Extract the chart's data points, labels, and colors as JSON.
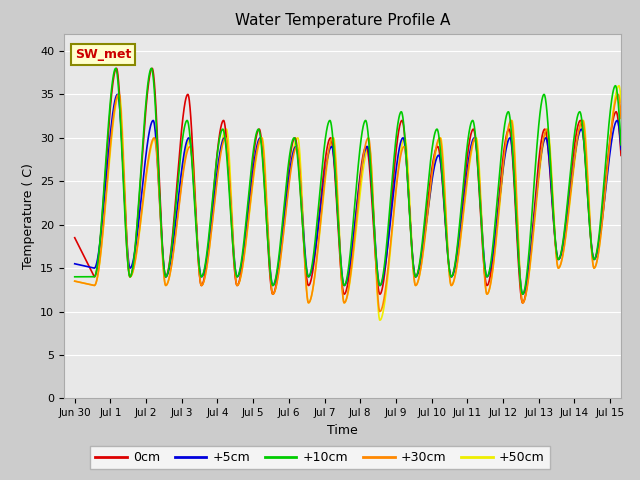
{
  "title": "Water Temperature Profile A",
  "xlabel": "Time",
  "ylabel": "Temperature ( C)",
  "ylim": [
    0,
    42
  ],
  "yticks": [
    0,
    5,
    10,
    15,
    20,
    25,
    30,
    35,
    40
  ],
  "xtick_labels": [
    "Jun 30",
    "Jul 1",
    "Jul 2",
    "Jul 3",
    "Jul 4",
    "Jul 5",
    "Jul 6",
    "Jul 7",
    "Jul 8",
    "Jul 9",
    "Jul 10",
    "Jul 11",
    "Jul 12",
    "Jul 13",
    "Jul 14",
    "Jul 15"
  ],
  "annotation_text": "SW_met",
  "annotation_bg": "#ffffcc",
  "annotation_border": "#888800",
  "annotation_text_color": "#cc0000",
  "colors": {
    "0cm": "#dd0000",
    "+5cm": "#0000dd",
    "+10cm": "#00cc00",
    "+30cm": "#ff8800",
    "+50cm": "#eeee00"
  },
  "legend_labels": [
    "0cm",
    "+5cm",
    "+10cm",
    "+30cm",
    "+50cm"
  ],
  "plot_bg": "#e8e8e8",
  "outer_bg": "#cccccc",
  "grid_color": "#ffffff",
  "line_width": 1.2,
  "day_peaks_0cm": [
    38,
    38,
    35,
    32,
    31,
    30,
    30,
    29,
    32,
    29,
    31,
    31,
    31,
    32,
    33,
    33
  ],
  "day_peaks_5cm": [
    35,
    32,
    30,
    30,
    30,
    29,
    29,
    29,
    30,
    28,
    30,
    30,
    30,
    31,
    32,
    32
  ],
  "day_peaks_10cm": [
    38,
    38,
    32,
    31,
    31,
    30,
    32,
    32,
    33,
    31,
    32,
    33,
    35,
    33,
    36,
    33
  ],
  "day_peaks_30cm": [
    35,
    30,
    29,
    30,
    30,
    29,
    30,
    30,
    29,
    30,
    30,
    32,
    31,
    32,
    35,
    32
  ],
  "day_peaks_50cm": [
    35,
    30,
    30,
    31,
    30,
    30,
    30,
    29,
    30,
    30,
    30,
    32,
    31,
    32,
    36,
    32
  ],
  "day_mins_0cm": [
    14,
    14,
    14,
    13,
    13,
    12,
    13,
    12,
    12,
    14,
    14,
    13,
    11,
    16,
    16,
    16
  ],
  "day_mins_5cm": [
    15,
    15,
    14,
    14,
    14,
    13,
    14,
    13,
    13,
    14,
    14,
    14,
    12,
    16,
    16,
    17
  ],
  "day_mins_10cm": [
    14,
    14,
    14,
    14,
    14,
    13,
    14,
    13,
    13,
    14,
    14,
    14,
    12,
    16,
    16,
    16
  ],
  "day_mins_30cm": [
    13,
    14,
    13,
    13,
    13,
    12,
    11,
    11,
    10,
    13,
    13,
    12,
    11,
    15,
    15,
    16
  ],
  "day_mins_50cm": [
    13,
    14,
    13,
    13,
    13,
    12,
    11,
    11,
    9,
    13,
    13,
    12,
    11,
    15,
    15,
    16
  ]
}
